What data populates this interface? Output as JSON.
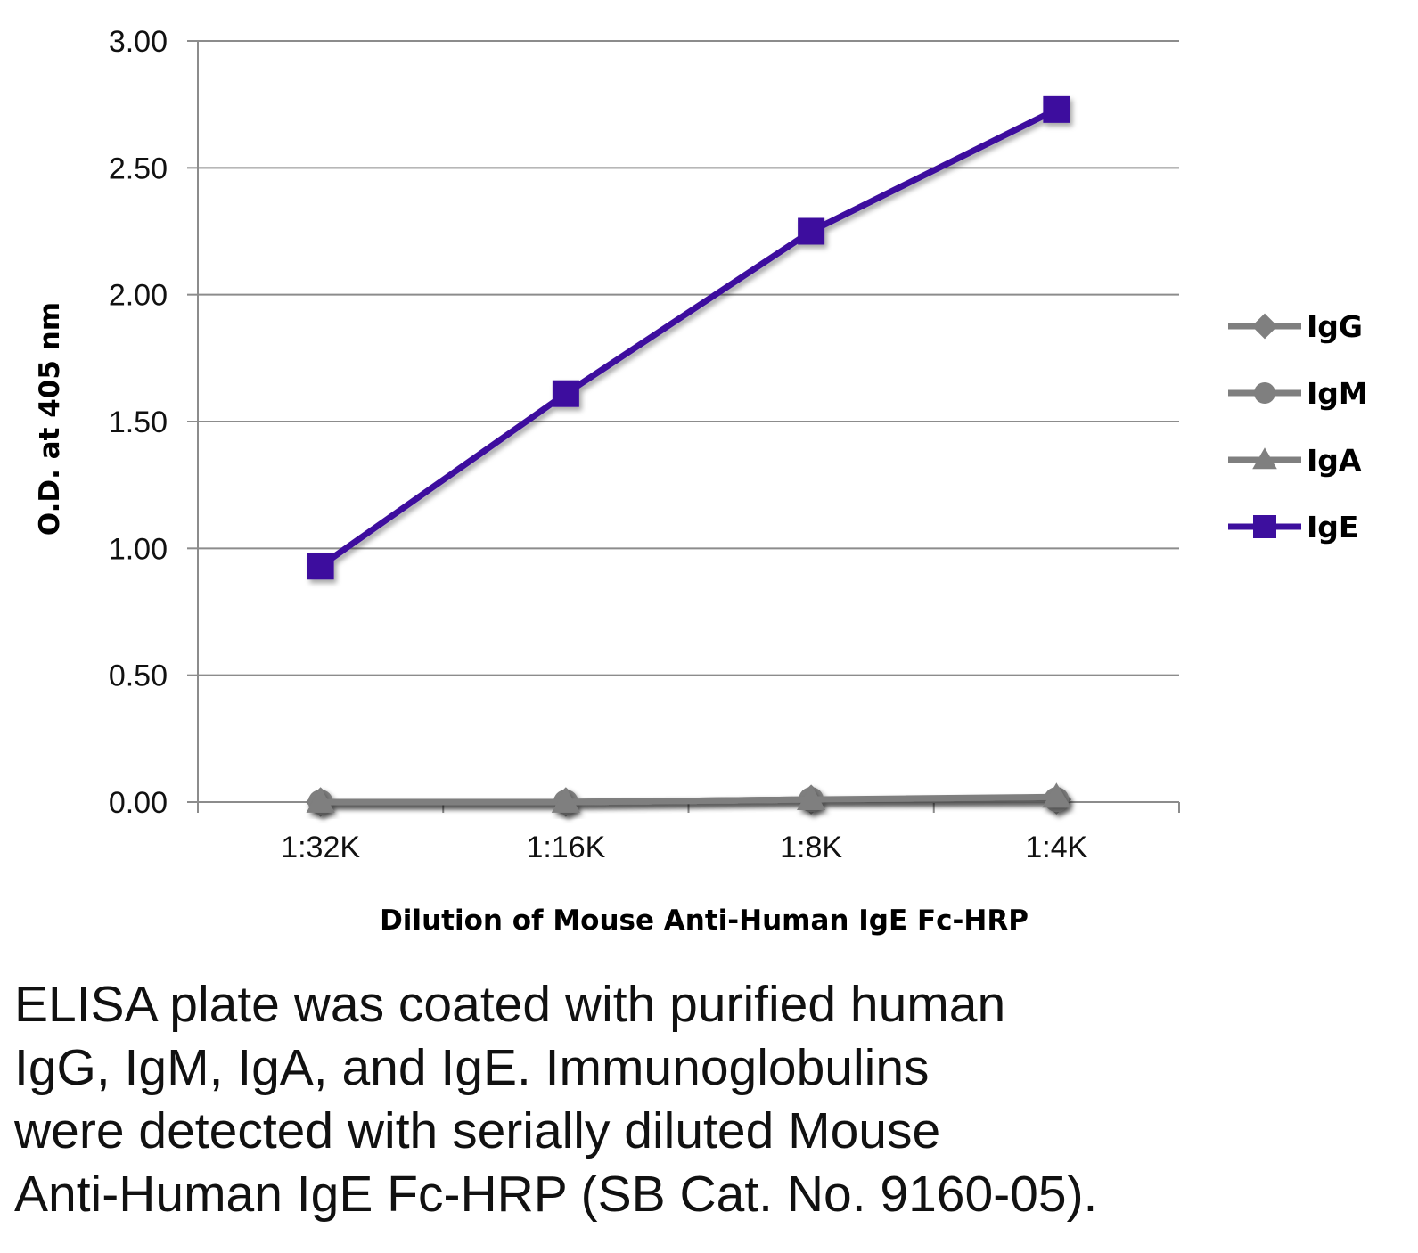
{
  "chart_data": {
    "type": "line",
    "title": "",
    "xlabel": "Dilution of Mouse Anti-Human IgE Fc-HRP",
    "ylabel": "O.D. at 405 nm",
    "categories": [
      "1:32K",
      "1:16K",
      "1:8K",
      "1:4K"
    ],
    "ylim": [
      0,
      3
    ],
    "yticks": [
      "0.00",
      "0.50",
      "1.00",
      "1.50",
      "2.00",
      "2.50",
      "3.00"
    ],
    "ytick_values": [
      0,
      0.5,
      1,
      1.5,
      2,
      2.5,
      3
    ],
    "grid": true,
    "legend_position": "right",
    "series": [
      {
        "name": "IgG",
        "values": [
          0.0,
          0.0,
          0.01,
          0.01
        ],
        "color": "#7f7f7f",
        "marker": "diamond"
      },
      {
        "name": "IgM",
        "values": [
          0.0,
          0.0,
          0.01,
          0.01
        ],
        "color": "#7f7f7f",
        "marker": "circle"
      },
      {
        "name": "IgA",
        "values": [
          0.0,
          0.0,
          0.01,
          0.02
        ],
        "color": "#7f7f7f",
        "marker": "triangle"
      },
      {
        "name": "IgE",
        "values": [
          0.93,
          1.61,
          2.25,
          2.73
        ],
        "color": "#3d0f9e",
        "marker": "square"
      }
    ]
  },
  "caption": {
    "lines": [
      "ELISA plate was coated with purified human",
      "IgG, IgM, IgA, and IgE.  Immunoglobulins",
      "were detected with serially diluted Mouse",
      "Anti-Human IgE Fc-HRP (SB Cat. No. 9160-05)."
    ]
  }
}
